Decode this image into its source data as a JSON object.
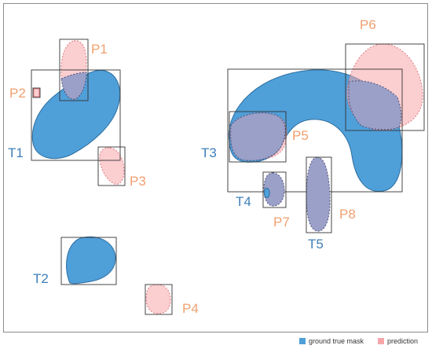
{
  "colors": {
    "ground_truth": "#4f9fd9",
    "prediction": "#f7a5aa",
    "overlap": "#9aa0c8",
    "truth_label": "#3f7fb8",
    "prediction_label": "#f0a070"
  },
  "truth_labels": {
    "t1": "T1",
    "t2": "T2",
    "t3": "T3",
    "t4": "T4",
    "t5": "T5"
  },
  "prediction_labels": {
    "p1": "P1",
    "p2": "P2",
    "p3": "P3",
    "p4": "P4",
    "p5": "P5",
    "p6": "P6",
    "p7": "P7",
    "p8": "P8"
  },
  "legend": {
    "ground_truth": "ground true mask",
    "prediction": "prediction"
  }
}
